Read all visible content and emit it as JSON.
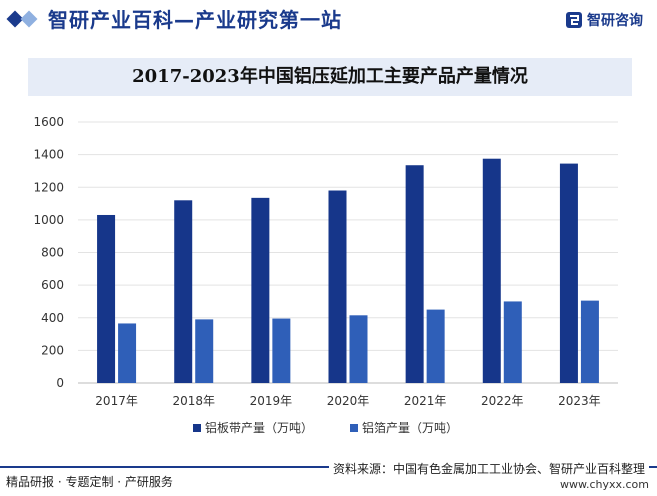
{
  "header": {
    "title": "智研产业百科—产业研究第一站",
    "brand": "智研咨询",
    "colors": {
      "brand": "#1a3a8c",
      "accent": "#8fb0e0"
    }
  },
  "chart_data": {
    "type": "bar",
    "title": "2017-2023年中国铝压延加工主要产品产量情况",
    "categories": [
      "2017年",
      "2018年",
      "2019年",
      "2020年",
      "2021年",
      "2022年",
      "2023年"
    ],
    "series": [
      {
        "name": "铝板带产量（万吨）",
        "values": [
          1030,
          1120,
          1135,
          1180,
          1335,
          1375,
          1345
        ],
        "color": "#16368a"
      },
      {
        "name": "铝箔产量（万吨）",
        "values": [
          365,
          390,
          395,
          415,
          450,
          500,
          505
        ],
        "color": "#2f5fb8"
      }
    ],
    "yticks": [
      "0",
      "200",
      "400",
      "600",
      "800",
      "1000",
      "1200",
      "1400",
      "1600"
    ],
    "ylim": [
      0,
      1600
    ],
    "grid": true,
    "legend": "bottom"
  },
  "footer": {
    "left": "精品研报 · 专题定制 · 产研服务",
    "source": "资料来源：中国有色金属加工工业协会、智研产业百科整理",
    "url": "www.chyxx.com"
  }
}
